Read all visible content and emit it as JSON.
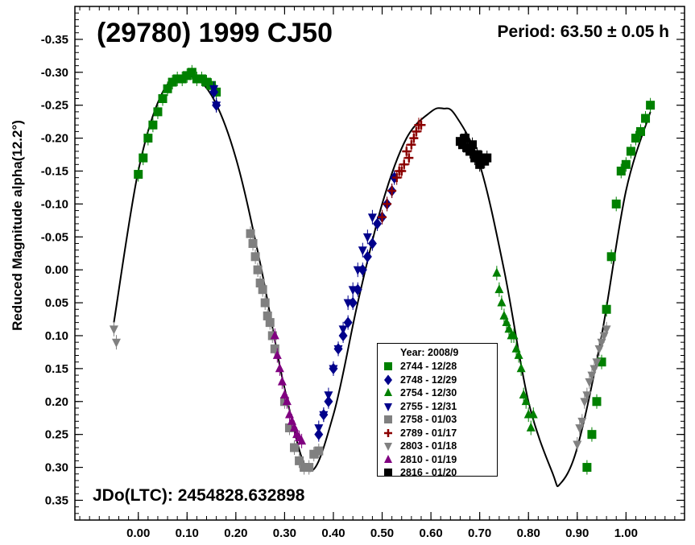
{
  "chart_data": {
    "type": "scatter",
    "title": "(29780) 1999 CJ50",
    "period_text": "Period: 63.50 ± 0.05 h",
    "epoch_text": "JDo(LTC): 2454828.632898",
    "ylabel": "Reduced Magnitude alpha(12.2°)",
    "xlabel": "",
    "xlim": [
      -0.13,
      1.12
    ],
    "ylim": [
      0.38,
      -0.4
    ],
    "y_inverted": true,
    "x_ticks": [
      "0.00",
      "0.10",
      "0.20",
      "0.30",
      "0.40",
      "0.50",
      "0.60",
      "0.70",
      "0.80",
      "0.90",
      "1.00"
    ],
    "y_ticks": [
      "-0.35",
      "-0.30",
      "-0.25",
      "-0.20",
      "-0.15",
      "-0.10",
      "-0.05",
      "0.00",
      "0.05",
      "0.10",
      "0.15",
      "0.20",
      "0.25",
      "0.30",
      "0.35"
    ],
    "grid": false,
    "legend_position": "lower-right",
    "legend_title": "Year: 2008/9",
    "fit_curve": {
      "x": [
        -0.05,
        0.0,
        0.05,
        0.1,
        0.15,
        0.2,
        0.25,
        0.3,
        0.35,
        0.4,
        0.45,
        0.5,
        0.55,
        0.6,
        0.625,
        0.65,
        0.7,
        0.75,
        0.8,
        0.85,
        0.865,
        0.9,
        0.95,
        1.0,
        1.05
      ],
      "y": [
        0.08,
        -0.15,
        -0.27,
        -0.295,
        -0.265,
        -0.17,
        -0.01,
        0.18,
        0.305,
        0.22,
        0.05,
        -0.1,
        -0.2,
        -0.24,
        -0.245,
        -0.235,
        -0.16,
        0.0,
        0.2,
        0.31,
        0.325,
        0.27,
        0.1,
        -0.12,
        -0.24
      ]
    },
    "series": [
      {
        "name": "2744 - 12/28",
        "color": "#008000",
        "marker": "square",
        "x": [
          0.0,
          0.01,
          0.02,
          0.03,
          0.04,
          0.05,
          0.06,
          0.07,
          0.08,
          0.09,
          0.1,
          0.11,
          0.12,
          0.13,
          0.14,
          0.15,
          0.16,
          0.92,
          0.93,
          0.94,
          0.95,
          0.96,
          0.97,
          0.98,
          0.99,
          1.0,
          1.01,
          1.02,
          1.03,
          1.04,
          1.05
        ],
        "y": [
          -0.145,
          -0.17,
          -0.2,
          -0.22,
          -0.24,
          -0.26,
          -0.275,
          -0.285,
          -0.29,
          -0.29,
          -0.295,
          -0.3,
          -0.29,
          -0.29,
          -0.285,
          -0.28,
          -0.27,
          0.3,
          0.25,
          0.2,
          0.14,
          0.06,
          -0.02,
          -0.1,
          -0.15,
          -0.16,
          -0.18,
          -0.2,
          -0.21,
          -0.23,
          -0.25
        ]
      },
      {
        "name": "2748 - 12/29",
        "color": "#00008B",
        "marker": "diamond",
        "x": [
          0.155,
          0.16,
          0.37,
          0.38,
          0.39,
          0.4,
          0.41,
          0.42,
          0.43,
          0.44,
          0.45,
          0.46,
          0.47,
          0.48,
          0.49,
          0.5,
          0.51,
          0.52,
          0.525
        ],
        "y": [
          -0.27,
          -0.25,
          0.25,
          0.22,
          0.2,
          0.15,
          0.12,
          0.1,
          0.08,
          0.05,
          0.03,
          0.0,
          -0.02,
          -0.04,
          -0.07,
          -0.08,
          -0.1,
          -0.12,
          -0.14
        ]
      },
      {
        "name": "2754 - 12/30",
        "color": "#008000",
        "marker": "triangle-up",
        "x": [
          0.735,
          0.74,
          0.745,
          0.75,
          0.755,
          0.76,
          0.765,
          0.77,
          0.775,
          0.78,
          0.785,
          0.79,
          0.795,
          0.8,
          0.805,
          0.81
        ],
        "y": [
          0.005,
          0.03,
          0.05,
          0.07,
          0.08,
          0.09,
          0.1,
          0.1,
          0.12,
          0.13,
          0.15,
          0.19,
          0.2,
          0.22,
          0.24,
          0.22
        ]
      },
      {
        "name": "2755 - 12/31",
        "color": "#00008B",
        "marker": "triangle-down",
        "x": [
          0.155,
          0.16,
          0.37,
          0.38,
          0.39,
          0.4,
          0.41,
          0.42,
          0.43,
          0.44,
          0.45,
          0.46,
          0.47,
          0.48
        ],
        "y": [
          -0.275,
          -0.25,
          0.24,
          0.22,
          0.19,
          0.15,
          0.12,
          0.09,
          0.05,
          0.03,
          0.0,
          -0.03,
          -0.05,
          -0.08
        ]
      },
      {
        "name": "2758 - 01/03",
        "color": "#808080",
        "marker": "square",
        "x": [
          0.23,
          0.235,
          0.24,
          0.245,
          0.25,
          0.255,
          0.26,
          0.265,
          0.27,
          0.275,
          0.28,
          0.3,
          0.31,
          0.32,
          0.33,
          0.34,
          0.35,
          0.36,
          0.37
        ],
        "y": [
          -0.055,
          -0.04,
          -0.02,
          0.0,
          0.02,
          0.03,
          0.05,
          0.07,
          0.08,
          0.1,
          0.12,
          0.2,
          0.24,
          0.27,
          0.29,
          0.3,
          0.3,
          0.28,
          0.275
        ]
      },
      {
        "name": "2789 - 01/17",
        "color": "#8B0000",
        "marker": "cross",
        "x": [
          0.5,
          0.51,
          0.52,
          0.53,
          0.535,
          0.54,
          0.545,
          0.55,
          0.555,
          0.56,
          0.565,
          0.57,
          0.575,
          0.58
        ],
        "y": [
          -0.08,
          -0.1,
          -0.12,
          -0.14,
          -0.15,
          -0.15,
          -0.16,
          -0.18,
          -0.17,
          -0.19,
          -0.2,
          -0.21,
          -0.22,
          -0.22
        ]
      },
      {
        "name": "2803 - 01/18",
        "color": "#808080",
        "marker": "triangle-down",
        "x": [
          -0.05,
          -0.045,
          0.9,
          0.905,
          0.91,
          0.915,
          0.92,
          0.925,
          0.93,
          0.935,
          0.94,
          0.945,
          0.95,
          0.955,
          0.96
        ],
        "y": [
          0.09,
          0.11,
          0.265,
          0.24,
          0.23,
          0.2,
          0.19,
          0.17,
          0.16,
          0.15,
          0.14,
          0.12,
          0.11,
          0.1,
          0.09
        ]
      },
      {
        "name": "2810 - 01/19",
        "color": "#800080",
        "marker": "triangle-up",
        "x": [
          0.28,
          0.285,
          0.29,
          0.295,
          0.3,
          0.305,
          0.31,
          0.315,
          0.32,
          0.325,
          0.33,
          0.335
        ],
        "y": [
          0.1,
          0.13,
          0.15,
          0.17,
          0.19,
          0.2,
          0.22,
          0.23,
          0.24,
          0.25,
          0.255,
          0.26
        ]
      },
      {
        "name": "2816 - 01/20",
        "color": "#000000",
        "marker": "square",
        "x": [
          0.66,
          0.665,
          0.67,
          0.675,
          0.68,
          0.685,
          0.69,
          0.695,
          0.7,
          0.705,
          0.71,
          0.715
        ],
        "y": [
          -0.195,
          -0.19,
          -0.2,
          -0.185,
          -0.18,
          -0.19,
          -0.17,
          -0.175,
          -0.16,
          -0.17,
          -0.165,
          -0.17
        ]
      }
    ]
  }
}
